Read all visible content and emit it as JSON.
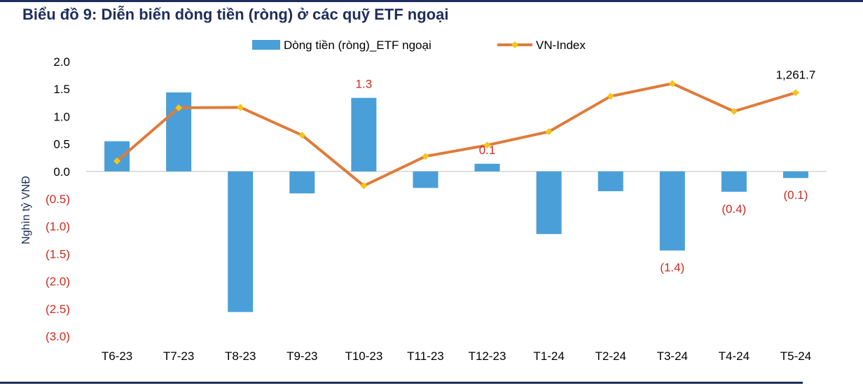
{
  "title": "Biểu đồ 9: Diễn biến dòng tiền (ròng) ở các quỹ ETF ngoại",
  "chart_data": {
    "type": "bar",
    "categories": [
      "T6-23",
      "T7-23",
      "T8-23",
      "T9-23",
      "T10-23",
      "T11-23",
      "T12-23",
      "T1-24",
      "T2-24",
      "T3-24",
      "T4-24",
      "T5-24"
    ],
    "series": [
      {
        "name": "Dòng tiền (ròng)_ETF ngoại",
        "type": "bar",
        "color": "#4a9fd8",
        "values": [
          0.55,
          1.44,
          -2.56,
          -0.4,
          1.34,
          -0.3,
          0.14,
          -1.14,
          -0.36,
          -1.44,
          -0.37,
          -0.12
        ]
      },
      {
        "name": "VN-Index",
        "type": "line",
        "color": "#e07b39",
        "marker_color": "#f5c518",
        "values": [
          1090,
          1224,
          1225,
          1155,
          1028,
          1102,
          1130,
          1164,
          1253,
          1285,
          1215,
          1262
        ]
      }
    ],
    "ylabel": "Nghìn tỷ VNĐ",
    "ylim": [
      -3.0,
      2.0
    ],
    "yticks": [
      "2.0",
      "1.5",
      "1.0",
      "0.5",
      "0.0",
      "(0.5)",
      "(1.0)",
      "(1.5)",
      "(2.0)",
      "(2.5)",
      "(3.0)"
    ],
    "tick_colors": {
      "positive": "#000000",
      "negative": "#cc2a1f"
    },
    "bar_labels": [
      {
        "index": 4,
        "text": "1.3"
      },
      {
        "index": 6,
        "text": "0.1"
      },
      {
        "index": 9,
        "text": "(1.4)"
      },
      {
        "index": 10,
        "text": "(0.4)"
      },
      {
        "index": 11,
        "text": "(0.1)"
      }
    ],
    "line_labels": [
      {
        "index": 11,
        "text": "1,261.7"
      }
    ],
    "grid": false,
    "legend_position": "top-center"
  }
}
